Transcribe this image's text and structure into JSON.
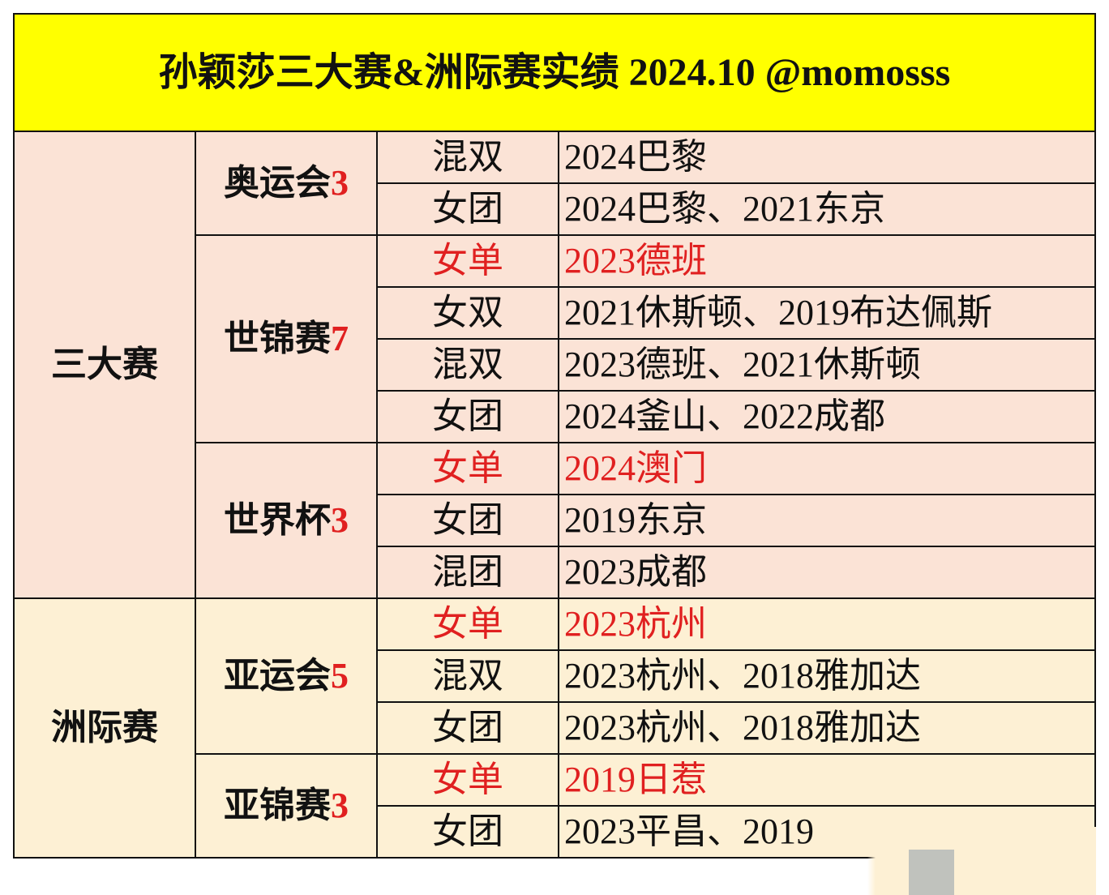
{
  "title": "孙颖莎三大赛&洲际赛实绩 2024.10 @momosss",
  "colors": {
    "title_bg": "#ffff00",
    "section1_bg": "#fbe3d6",
    "section2_bg": "#fdf0d4",
    "highlight": "#e02020"
  },
  "sections": [
    {
      "name": "三大赛",
      "competitions": [
        {
          "name": "奥运会",
          "count": "3",
          "rows": [
            {
              "event": "混双",
              "result": "2024巴黎",
              "highlight": false
            },
            {
              "event": "女团",
              "result": "2024巴黎、2021东京",
              "highlight": false
            }
          ]
        },
        {
          "name": "世锦赛",
          "count": "7",
          "rows": [
            {
              "event": "女单",
              "result": "2023德班",
              "highlight": true
            },
            {
              "event": "女双",
              "result": "2021休斯顿、2019布达佩斯",
              "highlight": false
            },
            {
              "event": "混双",
              "result": "2023德班、2021休斯顿",
              "highlight": false
            },
            {
              "event": "女团",
              "result": "2024釜山、2022成都",
              "highlight": false
            }
          ]
        },
        {
          "name": "世界杯",
          "count": "3",
          "rows": [
            {
              "event": "女单",
              "result": "2024澳门",
              "highlight": true
            },
            {
              "event": "女团",
              "result": "2019东京",
              "highlight": false
            },
            {
              "event": "混团",
              "result": "2023成都",
              "highlight": false
            }
          ]
        }
      ]
    },
    {
      "name": "洲际赛",
      "competitions": [
        {
          "name": "亚运会",
          "count": "5",
          "rows": [
            {
              "event": "女单",
              "result": "2023杭州",
              "highlight": true
            },
            {
              "event": "混双",
              "result": "2023杭州、2018雅加达",
              "highlight": false
            },
            {
              "event": "女团",
              "result": "2023杭州、2018雅加达",
              "highlight": false
            }
          ]
        },
        {
          "name": "亚锦赛",
          "count": "3",
          "rows": [
            {
              "event": "女单",
              "result": "2019日惹",
              "highlight": true
            },
            {
              "event": "女团",
              "result": "2023平昌、2019",
              "highlight": false
            }
          ]
        }
      ]
    }
  ]
}
